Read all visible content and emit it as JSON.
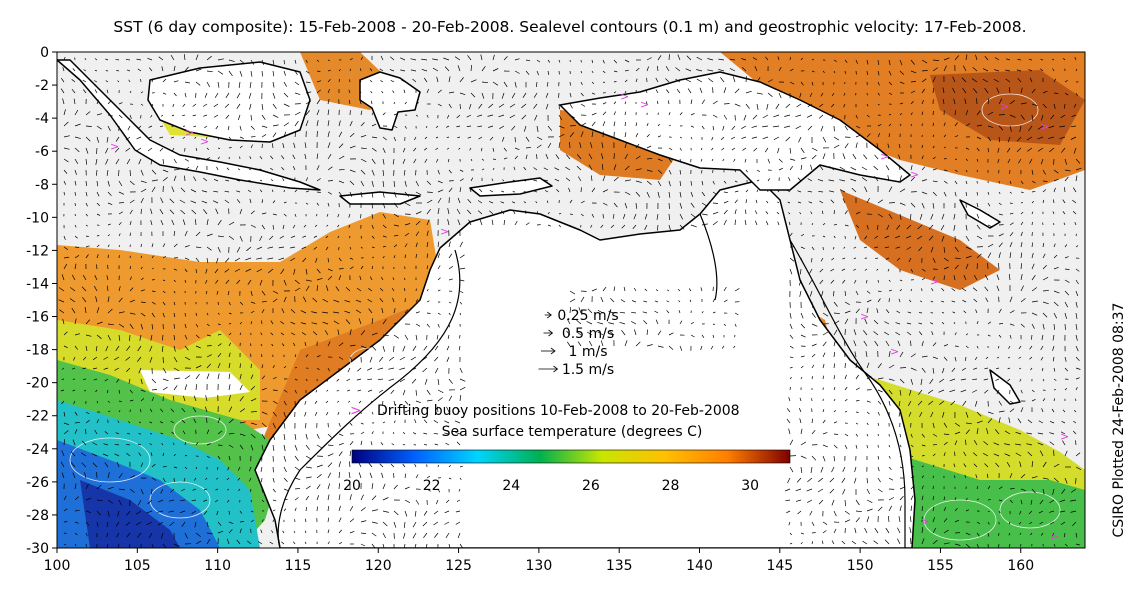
{
  "title": "SST (6 day composite): 15-Feb-2008 - 20-Feb-2008. Sealevel contours (0.1 m) and geostrophic velocity: 17-Feb-2008.",
  "side_label": "CSIRO Plotted 24-Feb-2008 08:37",
  "axes": {
    "x_ticks": [
      "100",
      "105",
      "110",
      "115",
      "120",
      "125",
      "130",
      "135",
      "140",
      "145",
      "150",
      "155",
      "160"
    ],
    "y_ticks": [
      "0",
      "-2",
      "-4",
      "-6",
      "-8",
      "-10",
      "-12",
      "-14",
      "-16",
      "-18",
      "-20",
      "-22",
      "-24",
      "-26",
      "-28",
      "-30"
    ],
    "lon_range": [
      100,
      164
    ],
    "lat_range": [
      -30,
      0
    ]
  },
  "velocity_legend": [
    {
      "label": "0.25 m/s",
      "speed": 0.25
    },
    {
      "label": "0.5 m/s",
      "speed": 0.5
    },
    {
      "label": "1 m/s",
      "speed": 1
    },
    {
      "label": "1.5 m/s",
      "speed": 1.5
    }
  ],
  "buoy_legend": {
    "marker": ">",
    "text": "Drifting buoy positions 10-Feb-2008 to 20-Feb-2008",
    "color": "#e040e0"
  },
  "colorbar": {
    "title": "Sea surface temperature (degrees C)",
    "range": [
      20,
      31
    ],
    "ticks": [
      "20",
      "22",
      "24",
      "26",
      "28",
      "30"
    ],
    "stops": [
      "#00007f",
      "#0060ff",
      "#00d4ff",
      "#00b050",
      "#c8e600",
      "#ffc000",
      "#ff7f00",
      "#7f0000"
    ]
  },
  "colors": {
    "land": "#ffffff",
    "coastline": "#000000",
    "arrows": "#000000",
    "contours": "#ffffff"
  }
}
